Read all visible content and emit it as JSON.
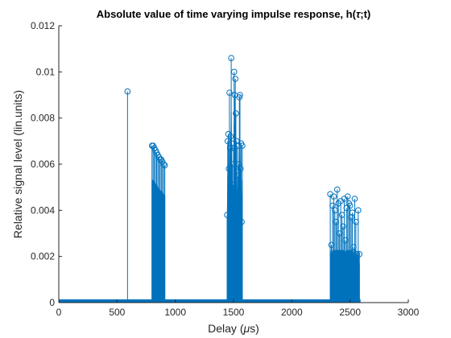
{
  "chart_data": {
    "type": "stem",
    "title": "Absolute value of time varying impulse response, h(τ;t)",
    "title_tau": "τ",
    "xlabel": "Delay (μs)",
    "xlabel_mu": "μ",
    "ylabel": "Relative signal level (lin.units)",
    "xlim": [
      0,
      3000
    ],
    "ylim": [
      0,
      0.012
    ],
    "xticks": [
      0,
      500,
      1000,
      1500,
      2000,
      2500,
      3000
    ],
    "yticks": [
      0,
      0.002,
      0.004,
      0.006,
      0.008,
      0.01,
      0.012
    ],
    "xtick_labels": [
      "0",
      "500",
      "1000",
      "1500",
      "2000",
      "2500",
      "3000"
    ],
    "ytick_labels": [
      "0",
      "0.002",
      "0.004",
      "0.006",
      "0.008",
      "0.01",
      "0.012"
    ],
    "color": "#0072BD",
    "baseline_range": [
      0,
      2590
    ],
    "single_stem": {
      "x": 590,
      "y": 0.00915
    },
    "cluster1": {
      "x": [
        800,
        810,
        820,
        830,
        840,
        850,
        860,
        870,
        880,
        890,
        900,
        910
      ],
      "y": [
        0.0068,
        0.0068,
        0.0067,
        0.0066,
        0.0065,
        0.0064,
        0.0063,
        0.0062,
        0.0062,
        0.0061,
        0.006,
        0.00595
      ]
    },
    "cluster2": {
      "x": [
        1445,
        1450,
        1455,
        1460,
        1465,
        1470,
        1475,
        1480,
        1485,
        1490,
        1495,
        1500,
        1505,
        1510,
        1515,
        1520,
        1525,
        1530,
        1535,
        1540,
        1545,
        1550,
        1555,
        1560,
        1565,
        1570,
        1575
      ],
      "y": [
        0.0038,
        0.007,
        0.0073,
        0.0058,
        0.0091,
        0.0067,
        0.0072,
        0.0106,
        0.0069,
        0.006,
        0.0051,
        0.0067,
        0.01,
        0.009,
        0.0097,
        0.0082,
        0.007,
        0.0045,
        0.0068,
        0.0055,
        0.006,
        0.0089,
        0.009,
        0.0058,
        0.0069,
        0.0035,
        0.0068
      ]
    },
    "cluster3": {
      "x": [
        2330,
        2340,
        2350,
        2360,
        2370,
        2380,
        2390,
        2400,
        2410,
        2420,
        2430,
        2440,
        2450,
        2460,
        2470,
        2480,
        2490,
        2500,
        2510,
        2520,
        2530,
        2540,
        2550,
        2560,
        2570,
        2580
      ],
      "y": [
        0.0047,
        0.0025,
        0.0042,
        0.0046,
        0.004,
        0.0035,
        0.0049,
        0.0043,
        0.003,
        0.0044,
        0.0038,
        0.0033,
        0.0045,
        0.0027,
        0.0041,
        0.0046,
        0.0043,
        0.0042,
        0.0037,
        0.0039,
        0.0024,
        0.0045,
        0.0035,
        0.0021,
        0.004,
        0.0021
      ]
    }
  }
}
